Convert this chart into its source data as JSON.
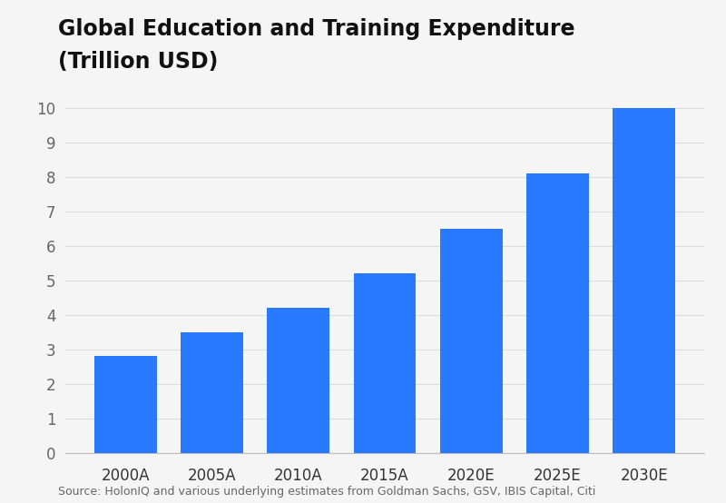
{
  "title_line1": "Global Education and Training Expenditure",
  "title_line2": "(Trillion USD)",
  "categories": [
    "2000A",
    "2005A",
    "2010A",
    "2015A",
    "2020E",
    "2025E",
    "2030E"
  ],
  "values": [
    2.8,
    3.5,
    4.2,
    5.2,
    6.5,
    8.1,
    10.0
  ],
  "bar_color": "#2979FF",
  "background_color": "#F5F5F5",
  "plot_bg_color": "#F5F5F5",
  "ylim": [
    0,
    10.5
  ],
  "yticks": [
    0,
    1,
    2,
    3,
    4,
    5,
    6,
    7,
    8,
    9,
    10
  ],
  "title_fontsize": 17,
  "title_fontweight": "bold",
  "tick_fontsize": 12,
  "source_text": "Source: HolonIQ and various underlying estimates from Goldman Sachs, GSV, IBIS Capital, Citi",
  "source_fontsize": 9,
  "grid_color": "#DDDDDD",
  "spine_color": "#BBBBBB",
  "bar_width": 0.72
}
